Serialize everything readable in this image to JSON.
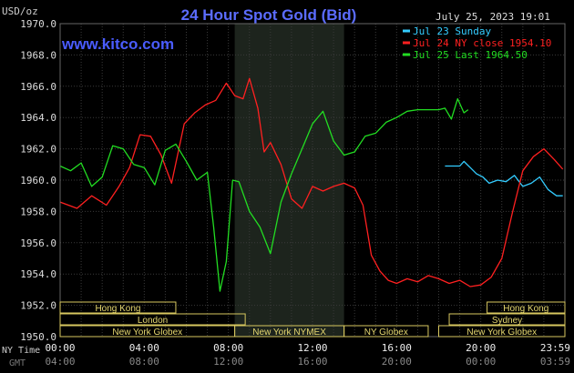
{
  "chart_data": {
    "type": "line",
    "title": "24 Hour Spot Gold (Bid)",
    "watermark": "www.kitco.com",
    "ylabel": "USD/oz",
    "datetime": "July 25, 2023 19:01",
    "ylim": [
      1950,
      1970
    ],
    "yticks": [
      1950,
      1952,
      1954,
      1956,
      1958,
      1960,
      1962,
      1964,
      1966,
      1968,
      1970
    ],
    "ytick_labels": [
      "1950.0",
      "1952.0",
      "1954.0",
      "1956.0",
      "1958.0",
      "1960.0",
      "1962.0",
      "1964.0",
      "1966.0",
      "1968.0",
      "1970.0"
    ],
    "xlim": [
      0,
      24
    ],
    "xticks": [
      0,
      4,
      8,
      12,
      16,
      20,
      24
    ],
    "xtick_labels_ny": [
      "00:00",
      "04:00",
      "08:00",
      "12:00",
      "16:00",
      "20:00",
      "23:59"
    ],
    "xtick_labels_gmt": [
      "04:00",
      "08:00",
      "12:00",
      "16:00",
      "20:00",
      "00:00",
      "03:59"
    ],
    "xaxis_label_ny": "NY Time",
    "xaxis_label_gmt": "GMT",
    "shaded_hours": [
      8.3,
      13.5
    ],
    "grid": true,
    "legend_position": "top-right",
    "series": [
      {
        "name": "Jul 23 Sunday",
        "color": "#33ccff",
        "x": [
          18.3,
          19.0,
          19.2,
          19.5,
          19.8,
          20.1,
          20.4,
          20.8,
          21.2,
          21.6,
          22.0,
          22.4,
          22.8,
          23.2,
          23.6,
          23.9
        ],
        "values": [
          1960.9,
          1960.9,
          1961.2,
          1960.8,
          1960.4,
          1960.2,
          1959.8,
          1960.0,
          1959.9,
          1960.3,
          1959.6,
          1959.8,
          1960.2,
          1959.4,
          1959.0,
          1959.0
        ]
      },
      {
        "name": "Jul 24 NY close 1954.10",
        "color": "#ff2020",
        "x": [
          0.0,
          0.8,
          1.5,
          2.2,
          2.8,
          3.3,
          3.8,
          4.3,
          4.8,
          5.3,
          5.9,
          6.4,
          6.9,
          7.4,
          7.9,
          8.3,
          8.7,
          9.0,
          9.4,
          9.7,
          10.0,
          10.5,
          11.0,
          11.5,
          12.0,
          12.5,
          13.0,
          13.5,
          14.0,
          14.4,
          14.8,
          15.2,
          15.6,
          16.0,
          16.5,
          17.0,
          17.5,
          18.0,
          18.5,
          19.0,
          19.5,
          20.0,
          20.5,
          21.0,
          21.5,
          22.0,
          22.5,
          23.0,
          23.5,
          23.9
        ],
        "values": [
          1958.6,
          1958.2,
          1959.0,
          1958.4,
          1959.6,
          1960.8,
          1962.9,
          1962.8,
          1961.6,
          1959.8,
          1963.6,
          1964.3,
          1964.8,
          1965.1,
          1966.2,
          1965.4,
          1965.2,
          1966.5,
          1964.6,
          1961.8,
          1962.4,
          1961.0,
          1958.8,
          1958.2,
          1959.6,
          1959.3,
          1959.6,
          1959.8,
          1959.5,
          1958.4,
          1955.2,
          1954.2,
          1953.6,
          1953.4,
          1953.7,
          1953.5,
          1953.9,
          1953.7,
          1953.4,
          1953.6,
          1953.2,
          1953.3,
          1953.8,
          1955.0,
          1957.9,
          1960.6,
          1961.5,
          1962.0,
          1961.3,
          1960.7
        ]
      },
      {
        "name": "Jul 25 Last 1964.50",
        "color": "#22dd22",
        "x": [
          0.0,
          0.5,
          1.0,
          1.5,
          2.0,
          2.5,
          3.0,
          3.5,
          4.0,
          4.5,
          5.0,
          5.5,
          6.0,
          6.5,
          7.0,
          7.3,
          7.6,
          7.9,
          8.2,
          8.5,
          9.0,
          9.5,
          10.0,
          10.5,
          11.0,
          11.5,
          12.0,
          12.5,
          13.0,
          13.5,
          14.0,
          14.5,
          15.0,
          15.5,
          16.0,
          16.5,
          17.0,
          17.5,
          18.0,
          18.3,
          18.6,
          18.9,
          19.2,
          19.4
        ],
        "values": [
          1960.9,
          1960.6,
          1961.1,
          1959.6,
          1960.2,
          1962.2,
          1962.0,
          1961.0,
          1960.8,
          1959.7,
          1961.9,
          1962.3,
          1961.2,
          1960.0,
          1960.5,
          1957.0,
          1952.9,
          1954.8,
          1960.0,
          1959.9,
          1958.0,
          1957.0,
          1955.3,
          1958.6,
          1960.4,
          1962.0,
          1963.6,
          1964.4,
          1962.5,
          1961.6,
          1961.8,
          1962.8,
          1963.0,
          1963.7,
          1964.0,
          1964.4,
          1964.5,
          1964.5,
          1964.5,
          1964.6,
          1963.9,
          1965.2,
          1964.3,
          1964.5
        ]
      }
    ],
    "session_bars": [
      {
        "label": "Hong Kong",
        "start": 0.0,
        "end": 5.5,
        "row": 0
      },
      {
        "label": "Hong Kong",
        "start": 20.3,
        "end": 24.0,
        "row": 0
      },
      {
        "label": "London",
        "start": 0.0,
        "end": 8.8,
        "row": 1
      },
      {
        "label": "Sydney",
        "start": 18.5,
        "end": 24.0,
        "row": 1
      },
      {
        "label": "New York Globex",
        "start": 0.0,
        "end": 8.3,
        "row": 2
      },
      {
        "label": "New York NYMEX",
        "start": 8.3,
        "end": 13.5,
        "row": 2
      },
      {
        "label": "NY Globex",
        "start": 13.5,
        "end": 17.5,
        "row": 2
      },
      {
        "label": "New York Globex",
        "start": 18.0,
        "end": 24.0,
        "row": 2
      }
    ]
  }
}
